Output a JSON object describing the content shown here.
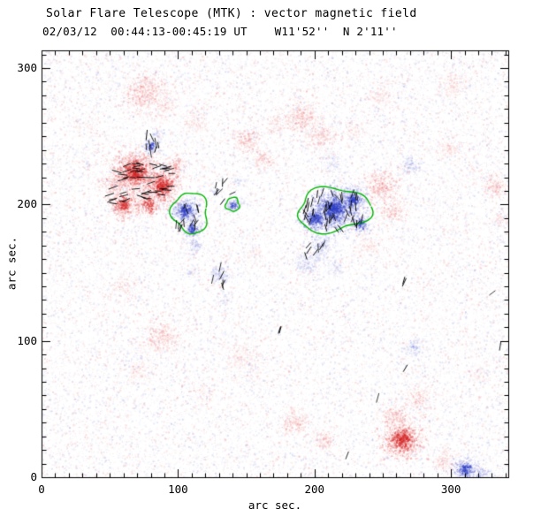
{
  "chart_data": {
    "type": "heatmap",
    "title": "Solar Flare Telescope (MTK) : vector magnetic field",
    "subtitle": "02/03/12  00:44:13-00:45:19 UT    W11'52''  N 2'11''",
    "xlabel": "arc sec.",
    "ylabel": "arc sec.",
    "xlim": [
      0,
      342
    ],
    "ylim": [
      0,
      313
    ],
    "xticks": [
      0,
      100,
      200,
      300
    ],
    "yticks": [
      0,
      100,
      200,
      300
    ],
    "minor_tick_interval": 10,
    "legend_semantics": {
      "red": "positive line-of-sight field",
      "blue": "negative line-of-sight field",
      "green": "field contour",
      "black_segments": "transverse field vectors"
    },
    "colors": {
      "positive": "#e84848",
      "positive_core": "#d62828",
      "negative": "#5866d6",
      "negative_core": "#3040c6",
      "contour": "#00b400",
      "vector": "#000000",
      "axes": "#000000"
    },
    "noise": {
      "count": 30000,
      "seed": 987654321
    },
    "blobs": [
      [
        75,
        282,
        13,
        1,
        0.5
      ],
      [
        90,
        272,
        8,
        1,
        0.3
      ],
      [
        113,
        262,
        7,
        1,
        0.35
      ],
      [
        68,
        224,
        14,
        1,
        0.8
      ],
      [
        88,
        214,
        11,
        1,
        0.85
      ],
      [
        60,
        200,
        9,
        1,
        0.7
      ],
      [
        78,
        200,
        8,
        1,
        0.6
      ],
      [
        97,
        229,
        7,
        1,
        0.55
      ],
      [
        52,
        215,
        7,
        1,
        0.5
      ],
      [
        150,
        247,
        8,
        1,
        0.5
      ],
      [
        163,
        233,
        7,
        1,
        0.45
      ],
      [
        170,
        258,
        6,
        1,
        0.35
      ],
      [
        190,
        264,
        11,
        1,
        0.45
      ],
      [
        205,
        251,
        9,
        1,
        0.4
      ],
      [
        248,
        214,
        10,
        1,
        0.55
      ],
      [
        256,
        196,
        8,
        1,
        0.45
      ],
      [
        240,
        172,
        9,
        1,
        0.3
      ],
      [
        298,
        242,
        9,
        1,
        0.3
      ],
      [
        302,
        288,
        9,
        1,
        0.35
      ],
      [
        248,
        280,
        8,
        1,
        0.3
      ],
      [
        332,
        214,
        8,
        1,
        0.45
      ],
      [
        336,
        190,
        7,
        1,
        0.3
      ],
      [
        60,
        140,
        8,
        1,
        0.3
      ],
      [
        88,
        103,
        11,
        1,
        0.45
      ],
      [
        70,
        78,
        8,
        1,
        0.28
      ],
      [
        148,
        88,
        12,
        1,
        0.28
      ],
      [
        120,
        62,
        8,
        1,
        0.2
      ],
      [
        30,
        258,
        9,
        1,
        0.2
      ],
      [
        185,
        40,
        8,
        1,
        0.5
      ],
      [
        207,
        28,
        7,
        1,
        0.45
      ],
      [
        264,
        28,
        12,
        1,
        0.8
      ],
      [
        258,
        45,
        8,
        1,
        0.5
      ],
      [
        276,
        58,
        8,
        1,
        0.45
      ],
      [
        295,
        12,
        7,
        1,
        0.4
      ],
      [
        320,
        75,
        7,
        1,
        0.25
      ],
      [
        155,
        165,
        7,
        1,
        0.25
      ],
      [
        230,
        255,
        7,
        1,
        0.3
      ],
      [
        80,
        243,
        5,
        -1,
        0.75
      ],
      [
        84,
        252,
        4,
        -1,
        0.5
      ],
      [
        105,
        196,
        8,
        -1,
        0.9
      ],
      [
        110,
        182,
        6,
        -1,
        0.75
      ],
      [
        112,
        170,
        5,
        -1,
        0.5
      ],
      [
        108,
        150,
        4,
        -1,
        0.35
      ],
      [
        140,
        200,
        5,
        -1,
        0.6
      ],
      [
        143,
        217,
        3,
        -1,
        0.45
      ],
      [
        127,
        210,
        3,
        -1,
        0.4
      ],
      [
        90,
        228,
        3,
        -1,
        0.45
      ],
      [
        214,
        197,
        13,
        -1,
        0.95
      ],
      [
        200,
        190,
        9,
        -1,
        0.8
      ],
      [
        228,
        204,
        8,
        -1,
        0.8
      ],
      [
        233,
        186,
        7,
        -1,
        0.6
      ],
      [
        205,
        170,
        8,
        -1,
        0.5
      ],
      [
        194,
        158,
        8,
        -1,
        0.45
      ],
      [
        215,
        154,
        6,
        -1,
        0.35
      ],
      [
        212,
        232,
        7,
        -1,
        0.35
      ],
      [
        130,
        149,
        6,
        -1,
        0.55
      ],
      [
        134,
        130,
        4,
        -1,
        0.4
      ],
      [
        270,
        229,
        6,
        -1,
        0.5
      ],
      [
        272,
        95,
        6,
        -1,
        0.5
      ],
      [
        310,
        6,
        9,
        -1,
        0.65
      ],
      [
        322,
        2,
        7,
        -1,
        0.5
      ]
    ],
    "contours": [
      {
        "x": 109,
        "y": 194,
        "rx": 13,
        "ry": 15,
        "rot": -15
      },
      {
        "x": 214,
        "y": 196,
        "rx": 27,
        "ry": 16,
        "rot": -5
      },
      {
        "x": 140,
        "y": 200,
        "rx": 5,
        "ry": 5,
        "rot": 0
      }
    ],
    "vector_clusters": [
      {
        "x": 74,
        "y": 218,
        "rx": 24,
        "ry": 14,
        "n": 40,
        "angle": 0,
        "spread": 22
      },
      {
        "x": 55,
        "y": 204,
        "rx": 7,
        "ry": 7,
        "n": 7,
        "angle": 10,
        "spread": 25
      },
      {
        "x": 107,
        "y": 190,
        "rx": 9,
        "ry": 13,
        "n": 14,
        "angle": 80,
        "spread": 40
      },
      {
        "x": 81,
        "y": 246,
        "rx": 5,
        "ry": 9,
        "n": 9,
        "angle": 95,
        "spread": 25
      },
      {
        "x": 135,
        "y": 209,
        "rx": 9,
        "ry": 9,
        "n": 8,
        "angle": 70,
        "spread": 45
      },
      {
        "x": 214,
        "y": 196,
        "rx": 24,
        "ry": 15,
        "n": 44,
        "angle": 90,
        "spread": 45
      },
      {
        "x": 199,
        "y": 168,
        "rx": 11,
        "ry": 7,
        "n": 7,
        "angle": 80,
        "spread": 35
      },
      {
        "x": 130,
        "y": 147,
        "rx": 5,
        "ry": 9,
        "n": 6,
        "angle": 85,
        "spread": 25
      },
      {
        "x": 176,
        "y": 108,
        "rx": 2,
        "ry": 2,
        "n": 2,
        "angle": 80,
        "spread": 20
      },
      {
        "x": 267,
        "y": 143,
        "rx": 2,
        "ry": 2,
        "n": 2,
        "angle": 60,
        "spread": 15
      },
      {
        "x": 330,
        "y": 137,
        "rx": 2,
        "ry": 2,
        "n": 1,
        "angle": 45,
        "spread": 10
      },
      {
        "x": 245,
        "y": 58,
        "rx": 2,
        "ry": 2,
        "n": 1,
        "angle": 70,
        "spread": 10
      },
      {
        "x": 267,
        "y": 78,
        "rx": 2,
        "ry": 2,
        "n": 1,
        "angle": 50,
        "spread": 10
      },
      {
        "x": 335,
        "y": 96,
        "rx": 2,
        "ry": 2,
        "n": 1,
        "angle": 80,
        "spread": 10
      },
      {
        "x": 225,
        "y": 17,
        "rx": 2,
        "ry": 2,
        "n": 1,
        "angle": 60,
        "spread": 10
      }
    ]
  }
}
